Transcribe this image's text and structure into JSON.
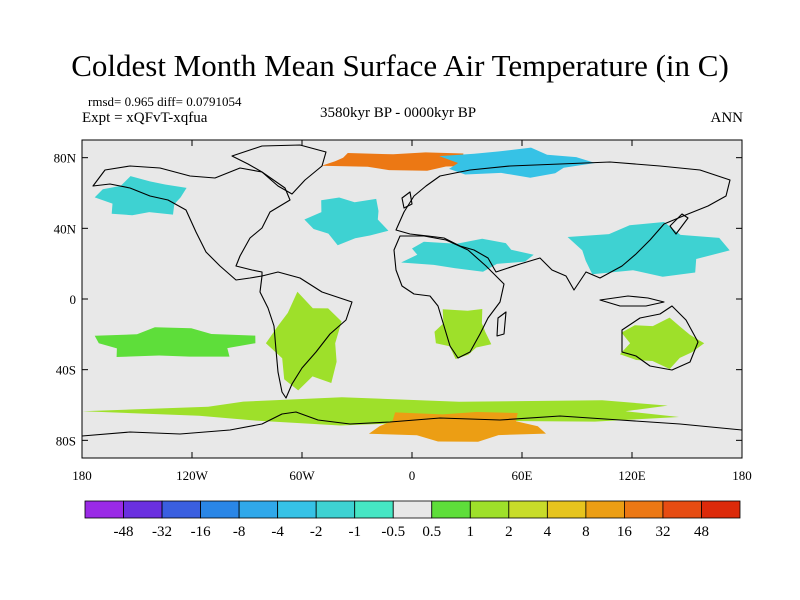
{
  "header": {
    "title": "Coldest Month Mean Surface Air Temperature (in C)",
    "stats": "rmsd= 0.965 diff= 0.0791054",
    "experiment": "Expt = xQFvT-xqfua",
    "period": "3580kyr BP - 0000kyr BP",
    "season": "ANN"
  },
  "axes": {
    "lon_ticks": [
      {
        "value": -180,
        "label": "180"
      },
      {
        "value": -120,
        "label": "120W"
      },
      {
        "value": -60,
        "label": "60W"
      },
      {
        "value": 0,
        "label": "0"
      },
      {
        "value": 60,
        "label": "60E"
      },
      {
        "value": 120,
        "label": "120E"
      },
      {
        "value": 180,
        "label": "180"
      }
    ],
    "lat_ticks": [
      {
        "value": 80,
        "label": "80N"
      },
      {
        "value": 40,
        "label": "40N"
      },
      {
        "value": 0,
        "label": "0"
      },
      {
        "value": -40,
        "label": "40S"
      },
      {
        "value": -80,
        "label": "80S"
      }
    ],
    "lon_range": [
      -180,
      180
    ],
    "lat_range": [
      -90,
      90
    ]
  },
  "colorbar": {
    "labels": [
      "-48",
      "-32",
      "-16",
      "-8",
      "-4",
      "-2",
      "-1",
      "-0.5",
      "0.5",
      "1",
      "2",
      "4",
      "8",
      "16",
      "32",
      "48"
    ],
    "colors": [
      "#9a2ae6",
      "#6a30e0",
      "#3a5fe0",
      "#2a86e6",
      "#30a8ea",
      "#36c2e6",
      "#3ed2d2",
      "#46e6c4",
      "#e8e8e8",
      "#5ede3a",
      "#9ee02a",
      "#c8dc2a",
      "#e6c41e",
      "#ec9e14",
      "#ec7814",
      "#e64c12",
      "#dc2a0a"
    ]
  },
  "field": {
    "background_color": "#e8e8e8",
    "regions": [
      {
        "name": "greenland-warm",
        "lon": [
          -55,
          50
        ],
        "lat": [
          72,
          84
        ],
        "value": 24
      },
      {
        "name": "arctic-eurasia-cool",
        "lon": [
          10,
          100
        ],
        "lat": [
          68,
          86
        ],
        "value": -3
      },
      {
        "name": "north-pacific-cool",
        "lon": [
          -175,
          -120
        ],
        "lat": [
          45,
          70
        ],
        "value": -1.5
      },
      {
        "name": "north-atlantic-cool",
        "lon": [
          -60,
          -10
        ],
        "lat": [
          30,
          60
        ],
        "value": -1.5
      },
      {
        "name": "north-africa-cool",
        "lon": [
          -10,
          70
        ],
        "lat": [
          15,
          35
        ],
        "value": -1.5
      },
      {
        "name": "asia-cool",
        "lon": [
          80,
          175
        ],
        "lat": [
          10,
          45
        ],
        "value": -1.5
      },
      {
        "name": "south-america-warm",
        "lon": [
          -80,
          -35
        ],
        "lat": [
          -55,
          5
        ],
        "value": 1.5
      },
      {
        "name": "southern-africa-warm",
        "lon": [
          10,
          45
        ],
        "lat": [
          -35,
          -2
        ],
        "value": 1.5
      },
      {
        "name": "australia-warm",
        "lon": [
          110,
          160
        ],
        "lat": [
          -40,
          -10
        ],
        "value": 1.5
      },
      {
        "name": "south-pacific-warm",
        "lon": [
          -180,
          -80
        ],
        "lat": [
          -35,
          -15
        ],
        "value": 0.8
      },
      {
        "name": "southern-ocean-warm",
        "lon": [
          -180,
          180
        ],
        "lat": [
          -72,
          -55
        ],
        "value": 1.5
      },
      {
        "name": "antarctica-warm",
        "lon": [
          -30,
          80
        ],
        "lat": [
          -82,
          -62
        ],
        "value": 12
      }
    ]
  }
}
